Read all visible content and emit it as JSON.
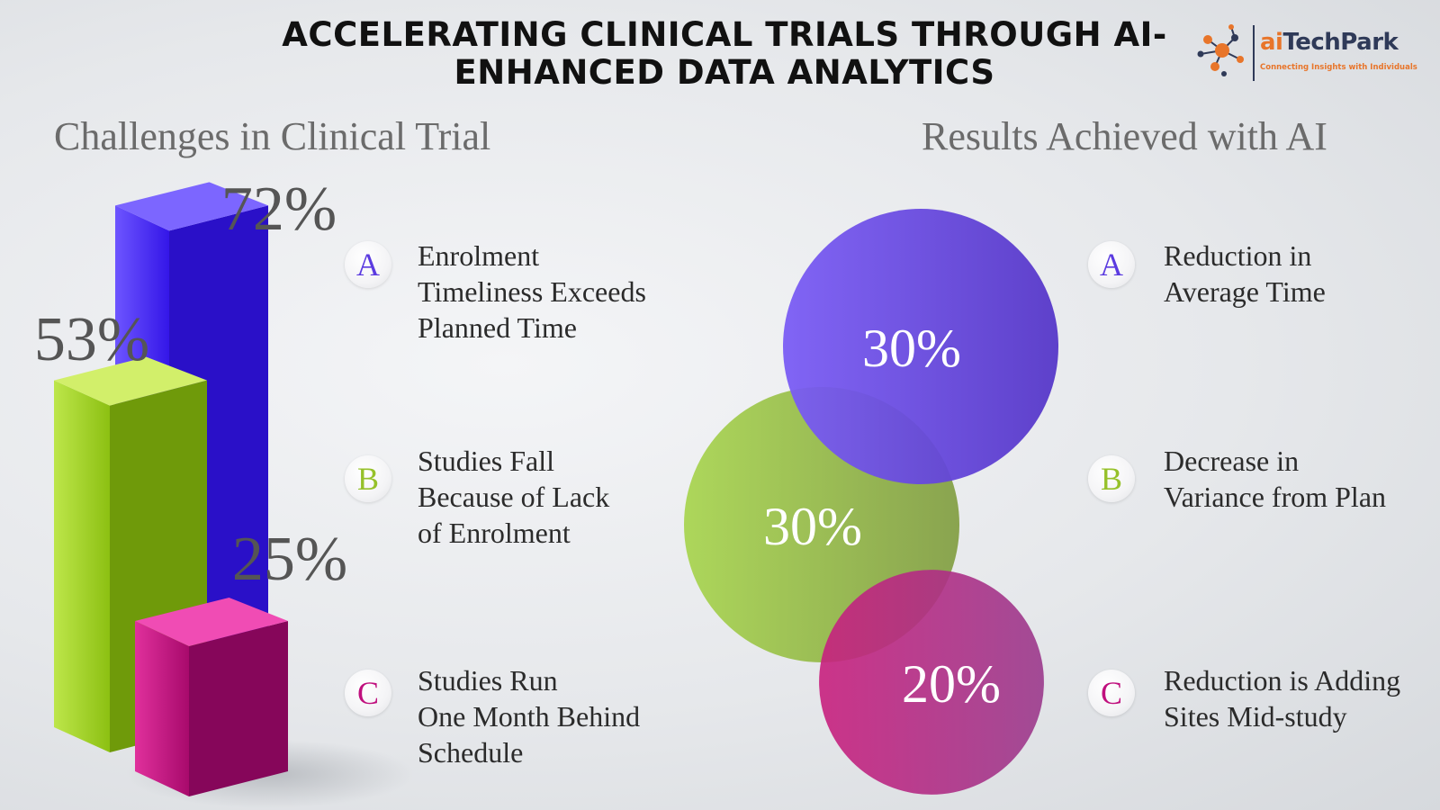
{
  "header": {
    "title": "ACCELERATING CLINICAL TRIALS THROUGH AI-ENHANCED DATA ANALYTICS",
    "logo_ai": "ai",
    "logo_rest": "TechPark",
    "logo_tagline": "Connecting Insights with Individuals"
  },
  "colors": {
    "blue": "#4a2ef5",
    "green": "#a3d81e",
    "magenta": "#c0107e",
    "label_blue": "#5b3be0",
    "label_green": "#96c12a",
    "label_magenta": "#c0107e"
  },
  "left": {
    "title": "Challenges in Clinical Trial",
    "items": [
      {
        "badge": "A",
        "text": "Enrolment\nTimeliness Exceeds\nPlanned Time"
      },
      {
        "badge": "B",
        "text": "Studies Fall\nBecause of Lack\nof Enrolment"
      },
      {
        "badge": "C",
        "text": "Studies Run\nOne Month Behind\nSchedule"
      }
    ]
  },
  "right": {
    "title": "Results Achieved with AI",
    "items": [
      {
        "badge": "A",
        "text": "Reduction in\nAverage Time"
      },
      {
        "badge": "B",
        "text": "Decrease in\nVariance from Plan"
      },
      {
        "badge": "C",
        "text": "Reduction is Adding\nSites Mid-study"
      }
    ]
  },
  "chart_data": [
    {
      "type": "bar",
      "title": "Challenges in Clinical Trial",
      "categories": [
        "A",
        "B",
        "C"
      ],
      "values": [
        72,
        53,
        25
      ],
      "labels": [
        "72%",
        "53%",
        "25%"
      ],
      "colors": [
        "#4a2ef5",
        "#a3d81e",
        "#c0107e"
      ]
    },
    {
      "type": "bubble",
      "title": "Results Achieved with AI",
      "categories": [
        "A",
        "B",
        "C"
      ],
      "values": [
        30,
        30,
        20
      ],
      "labels": [
        "30%",
        "30%",
        "20%"
      ],
      "colors": [
        "#4a2ef5",
        "#a3d81e",
        "#c0107e"
      ]
    }
  ]
}
